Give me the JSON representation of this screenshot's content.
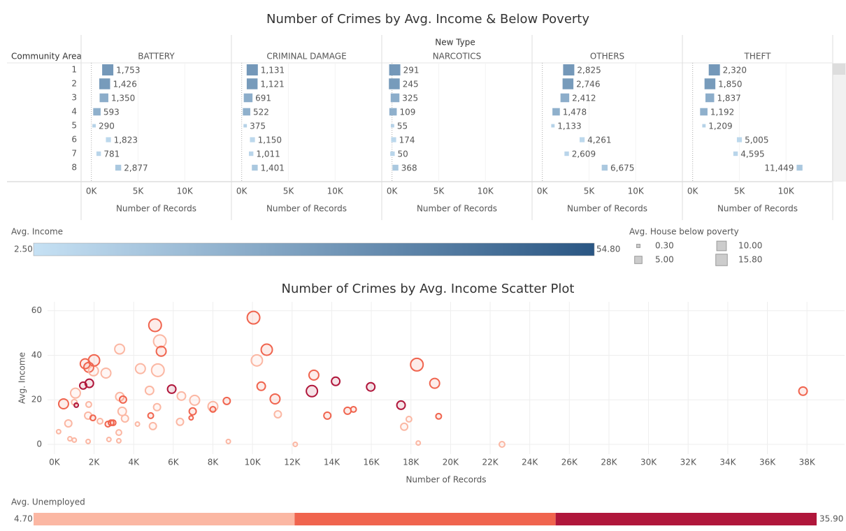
{
  "chart_data": [
    {
      "type": "bar",
      "title": "Number of Crimes by Avg. Income & Below Poverty",
      "column_header": "New Type",
      "row_header": "Community Area",
      "categories": [
        "1",
        "2",
        "3",
        "4",
        "5",
        "6",
        "7",
        "8"
      ],
      "series": [
        {
          "name": "BATTERY",
          "values": [
            1753,
            1426,
            1350,
            593,
            290,
            1823,
            781,
            2877
          ],
          "value_labels": [
            "1,753",
            "1,426",
            "1,350",
            "593",
            "290",
            "1,823",
            "781",
            "2,877"
          ]
        },
        {
          "name": "CRIMINAL DAMAGE",
          "values": [
            1131,
            1121,
            691,
            522,
            375,
            1150,
            1011,
            1401
          ],
          "value_labels": [
            "1,131",
            "1,121",
            "691",
            "522",
            "375",
            "1,150",
            "1,011",
            "1,401"
          ]
        },
        {
          "name": "NARCOTICS",
          "values": [
            291,
            245,
            325,
            109,
            55,
            174,
            50,
            368
          ],
          "value_labels": [
            "291",
            "245",
            "325",
            "109",
            "55",
            "174",
            "50",
            "368"
          ]
        },
        {
          "name": "OTHERS",
          "values": [
            2825,
            2746,
            2412,
            1478,
            1133,
            4261,
            2609,
            6675
          ],
          "value_labels": [
            "2,825",
            "2,746",
            "2,412",
            "1,478",
            "1,133",
            "4,261",
            "2,609",
            "6,675"
          ]
        },
        {
          "name": "THEFT",
          "values": [
            2320,
            1850,
            1837,
            1192,
            1209,
            5005,
            4595,
            11449
          ],
          "value_labels": [
            "2,320",
            "1,850",
            "1,837",
            "1,192",
            "1,209",
            "5,005",
            "4,595",
            "11,449"
          ]
        }
      ],
      "income": [
        30,
        29,
        22,
        21,
        8,
        6,
        7,
        12
      ],
      "poverty": [
        14.6,
        13.5,
        7.8,
        5,
        0.3,
        1.5,
        1,
        2.5
      ],
      "x_label": "Number of Records",
      "xlim": [
        -1100,
        15000
      ],
      "xticks": [
        {
          "value": 0,
          "label": "0K"
        },
        {
          "value": 5000,
          "label": "5K"
        },
        {
          "value": 10000,
          "label": "10K"
        }
      ],
      "color_legend": {
        "title": "Avg. Income",
        "ticks": [
          {
            "value": 2.5,
            "label": "2.50"
          },
          {
            "value": 54.8,
            "label": "54.80"
          }
        ],
        "colors": [
          "#c6e1f4",
          "#2a5683"
        ]
      },
      "size_legend": {
        "title": "Avg. House below poverty",
        "items": [
          {
            "value": 0.3,
            "label": "0.30"
          },
          {
            "value": 5,
            "label": "5.00"
          },
          {
            "value": 10,
            "label": "10.00"
          },
          {
            "value": 15.8,
            "label": "15.80"
          }
        ]
      }
    },
    {
      "type": "scatter",
      "title": "Number of Crimes by Avg. Income Scatter Plot",
      "x_label": "Number of Records",
      "y_label": "Avg. Income",
      "x": [
        460,
        210,
        700,
        780,
        1000,
        1000,
        1060,
        1100,
        1450,
        1550,
        1760,
        1700,
        1700,
        1730,
        1730,
        1940,
        1970,
        2000,
        2300,
        2600,
        2700,
        2750,
        2860,
        2960,
        3250,
        3250,
        3290,
        3300,
        3460,
        3420,
        3560,
        4190,
        4340,
        4800,
        4860,
        4970,
        5080,
        5180,
        5220,
        5320,
        5390,
        5920,
        6340,
        6410,
        6900,
        6980,
        7080,
        8000,
        8000,
        8700,
        8780,
        10050,
        10220,
        10440,
        10720,
        11140,
        11280,
        12160,
        13100,
        13000,
        13780,
        14200,
        14800,
        15100,
        15970,
        17500,
        17660,
        17900,
        18300,
        18370,
        19200,
        19400,
        22600,
        37800
      ],
      "values": [
        18.2,
        5.7,
        9.4,
        2.5,
        1.9,
        18.9,
        23,
        17.6,
        26.4,
        36.2,
        27.4,
        12.9,
        1.3,
        17.9,
        34.6,
        11.9,
        33,
        37.7,
        10.4,
        32,
        9.1,
        2.2,
        9.7,
        9.7,
        5.3,
        1.6,
        42.8,
        21.4,
        20.1,
        14.8,
        11.6,
        9.1,
        34,
        24.2,
        12.9,
        8.2,
        53.5,
        16.7,
        33.3,
        46.3,
        41.8,
        24.8,
        10.1,
        21.7,
        11.9,
        14.8,
        19.8,
        17,
        15.7,
        19.5,
        1.3,
        56.9,
        37.7,
        26.1,
        42.5,
        20.4,
        13.5,
        0,
        31.1,
        23.9,
        12.9,
        28.3,
        15.1,
        15.7,
        25.8,
        17.6,
        7.9,
        11.3,
        35.8,
        0.6,
        27.4,
        12.6,
        0,
        23.9
      ],
      "sizes": [
        7.7,
        0.3,
        2.8,
        0.3,
        0.3,
        1.2,
        7.7,
        0.3,
        2.8,
        7.7,
        4.9,
        2.8,
        0.3,
        1.2,
        7.7,
        1.2,
        7.7,
        11.1,
        1.2,
        7.7,
        1.2,
        0.3,
        1.2,
        1.2,
        1.2,
        0.3,
        7.7,
        4.9,
        2.8,
        4.9,
        2.8,
        0.3,
        7.7,
        4.9,
        1.2,
        2.8,
        15.1,
        2.8,
        15.1,
        15.1,
        7.7,
        4.9,
        2.8,
        4.9,
        0.3,
        2.8,
        7.7,
        7.7,
        1.2,
        2.8,
        0.3,
        15.1,
        11.1,
        4.9,
        11.1,
        7.7,
        2.8,
        0.3,
        7.7,
        11.1,
        2.8,
        4.9,
        2.8,
        1.2,
        4.9,
        4.9,
        2.8,
        1.2,
        15.1,
        0.3,
        7.7,
        1.2,
        1.2,
        4.9
      ],
      "color_values": [
        20,
        8,
        8,
        8,
        8,
        8,
        8,
        30,
        30,
        20,
        30,
        8,
        8,
        8,
        20,
        20,
        8,
        20,
        8,
        8,
        20,
        8,
        20,
        20,
        8,
        8,
        8,
        8,
        20,
        8,
        8,
        8,
        8,
        8,
        20,
        8,
        20,
        8,
        8,
        8,
        20,
        30,
        8,
        8,
        20,
        20,
        8,
        8,
        20,
        20,
        8,
        20,
        8,
        20,
        20,
        20,
        8,
        8,
        20,
        30,
        20,
        30,
        20,
        20,
        30,
        30,
        8,
        8,
        20,
        8,
        20,
        20,
        8,
        20
      ],
      "xlim": [
        -350,
        39900
      ],
      "ylim": [
        -4.4,
        64
      ],
      "xticks": [
        {
          "value": 0,
          "label": "0K"
        },
        {
          "value": 2000,
          "label": "2K"
        },
        {
          "value": 4000,
          "label": "4K"
        },
        {
          "value": 6000,
          "label": "6K"
        },
        {
          "value": 8000,
          "label": "8K"
        },
        {
          "value": 10000,
          "label": "10K"
        },
        {
          "value": 12000,
          "label": "12K"
        },
        {
          "value": 14000,
          "label": "14K"
        },
        {
          "value": 16000,
          "label": "16K"
        },
        {
          "value": 18000,
          "label": "18K"
        },
        {
          "value": 20000,
          "label": "20K"
        },
        {
          "value": 22000,
          "label": "22K"
        },
        {
          "value": 24000,
          "label": "24K"
        },
        {
          "value": 26000,
          "label": "26K"
        },
        {
          "value": 28000,
          "label": "28K"
        },
        {
          "value": 30000,
          "label": "30K"
        },
        {
          "value": 32000,
          "label": "32K"
        },
        {
          "value": 34000,
          "label": "34K"
        },
        {
          "value": 36000,
          "label": "36K"
        },
        {
          "value": 38000,
          "label": "38K"
        }
      ],
      "yticks": [
        0,
        20,
        40,
        60
      ],
      "grid": true,
      "color_legend": {
        "title": "Avg. Unemployed",
        "ticks": [
          {
            "value": 4.7,
            "label": "4.70"
          },
          {
            "value": 35.9,
            "label": "35.90"
          }
        ],
        "colors": [
          "#fbb7a3",
          "#f0644e",
          "#b0163b"
        ]
      }
    }
  ]
}
